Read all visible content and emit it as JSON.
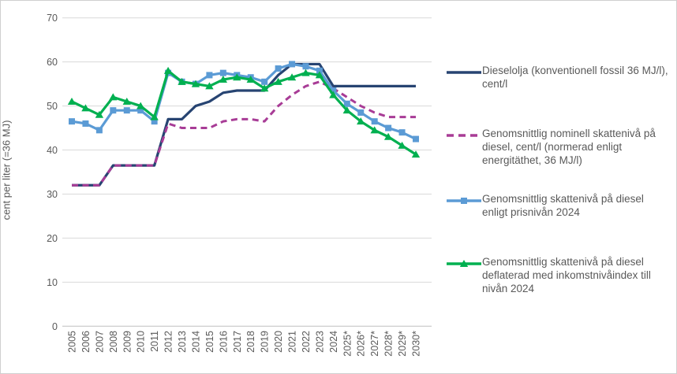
{
  "figure": {
    "background": "#ffffff",
    "border_color": "#cfcfcf",
    "gridline_color": "#d9d9d9",
    "axis_line_color": "#bfbfbf",
    "axis_text_color": "#595959"
  },
  "chart_data": {
    "type": "line",
    "title": "",
    "ylabel": "cent per liter (=36 MJ)",
    "xlabel": "",
    "ylim": [
      0,
      70
    ],
    "yticks": [
      0,
      10,
      20,
      30,
      40,
      50,
      60,
      70
    ],
    "grid": "horizontal",
    "legend_position": "right",
    "categories": [
      "2005",
      "2006",
      "2007",
      "2008",
      "2009",
      "2010",
      "2011",
      "2012",
      "2013",
      "2014",
      "2015",
      "2016",
      "2017",
      "2018",
      "2019",
      "2020",
      "2021",
      "2022",
      "2023",
      "2024",
      "2025*",
      "2026*",
      "2027*",
      "2028*",
      "2029*",
      "2030*"
    ],
    "series": [
      {
        "name": "Dieselolja (konventionell fossil 36 MJ/l), cent/l",
        "color": "#274472",
        "style": "solid",
        "marker": "none",
        "values": [
          32,
          32,
          32,
          36.5,
          36.5,
          36.5,
          36.5,
          47,
          47,
          50,
          51,
          53,
          53.5,
          53.5,
          53.5,
          57,
          59.5,
          59.5,
          59.5,
          54.5,
          54.5,
          54.5,
          54.5,
          54.5,
          54.5,
          54.5
        ]
      },
      {
        "name": "Genomsnittlig nominell skattenivå på diesel, cent/l (normerad enligt energitäthet, 36 MJ/l)",
        "color": "#A83C96",
        "style": "dashed",
        "marker": "none",
        "values": [
          32,
          32,
          32,
          36.5,
          36.5,
          36.5,
          36.5,
          46,
          45,
          45,
          45,
          46.5,
          47,
          47,
          46.5,
          50,
          52.5,
          54.5,
          55.5,
          54,
          52,
          50,
          48.5,
          47.5,
          47.5,
          47.5
        ]
      },
      {
        "name": "Genomsnittlig skattenivå på diesel enligt prisnivån 2024",
        "color": "#5B9BD5",
        "style": "solid",
        "marker": "square",
        "values": [
          46.5,
          46,
          44.5,
          49,
          49,
          49,
          46.5,
          57.5,
          55.5,
          55,
          57,
          57.5,
          57,
          56.5,
          55.5,
          58.5,
          59.5,
          59,
          58,
          53.5,
          50.5,
          48.5,
          46.5,
          45,
          44,
          42.5
        ]
      },
      {
        "name": "Genomsnittlig skattenivå på diesel deflaterad med inkomstnivåindex till nivån 2024",
        "color": "#00B050",
        "style": "solid",
        "marker": "triangle",
        "values": [
          51,
          49.5,
          48,
          52,
          51,
          50,
          47.5,
          58,
          55.5,
          55,
          54.5,
          56,
          56.5,
          56,
          54,
          55.5,
          56.5,
          57.5,
          57,
          52.5,
          49,
          46.5,
          44.5,
          43,
          41,
          39
        ]
      }
    ]
  }
}
